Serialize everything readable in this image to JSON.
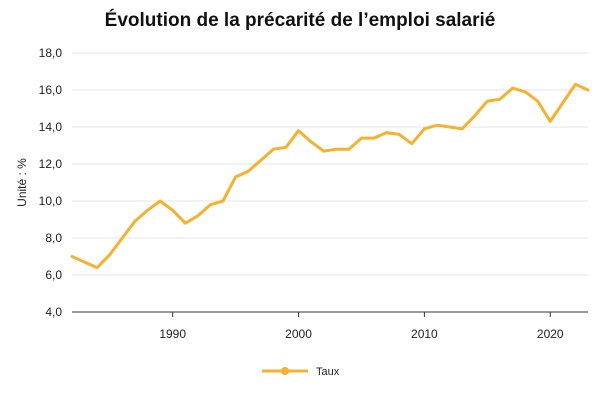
{
  "chart_data": {
    "type": "line",
    "title": "Évolution de la précarité de l’emploi salarié",
    "xlabel": "",
    "ylabel": "Unité : %",
    "xlim": [
      1982,
      2023
    ],
    "ylim": [
      4.0,
      18.0
    ],
    "yticks": [
      "4,0",
      "6,0",
      "8,0",
      "10,0",
      "12,0",
      "14,0",
      "16,0",
      "18,0"
    ],
    "xticks": [
      "1990",
      "2000",
      "2010",
      "2020"
    ],
    "grid": true,
    "legend_position": "bottom",
    "x": [
      1982,
      1983,
      1984,
      1985,
      1986,
      1987,
      1988,
      1989,
      1990,
      1991,
      1992,
      1993,
      1994,
      1995,
      1996,
      1997,
      1998,
      1999,
      2000,
      2001,
      2002,
      2003,
      2004,
      2005,
      2006,
      2007,
      2008,
      2009,
      2010,
      2011,
      2012,
      2013,
      2014,
      2015,
      2016,
      2017,
      2018,
      2019,
      2020,
      2021,
      2022,
      2023
    ],
    "series": [
      {
        "name": "Taux",
        "color": "#f7b12c",
        "values": [
          7.0,
          6.7,
          6.4,
          7.1,
          8.0,
          8.9,
          9.5,
          10.0,
          9.5,
          8.8,
          9.2,
          9.8,
          10.0,
          11.3,
          11.6,
          12.2,
          12.8,
          12.9,
          13.8,
          13.2,
          12.7,
          12.8,
          12.8,
          13.4,
          13.4,
          13.7,
          13.6,
          13.1,
          13.9,
          14.1,
          14.0,
          13.9,
          14.6,
          15.4,
          15.5,
          16.1,
          15.9,
          15.4,
          14.3,
          15.3,
          16.3,
          16.0
        ]
      }
    ]
  }
}
